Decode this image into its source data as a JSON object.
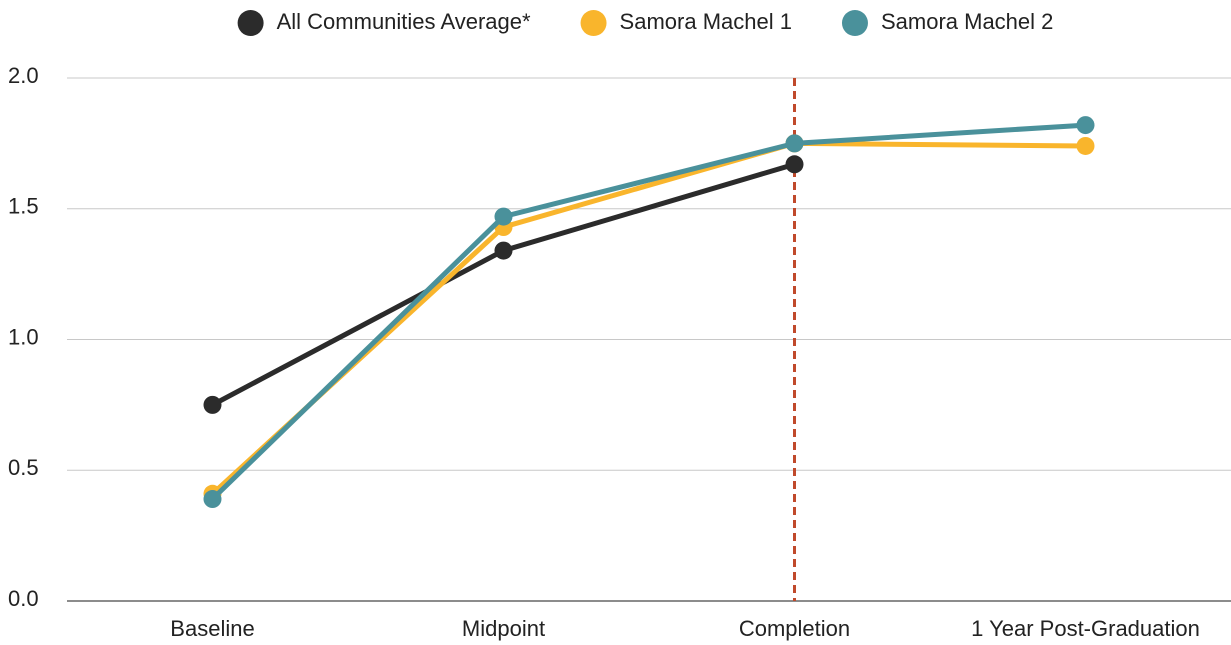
{
  "chart_data": {
    "type": "line",
    "categories": [
      "Baseline",
      "Midpoint",
      "Completion",
      "1 Year Post-Graduation"
    ],
    "series": [
      {
        "name": "All Communities Average*",
        "color": "#2b2b2b",
        "values": [
          0.75,
          1.34,
          1.67,
          null
        ]
      },
      {
        "name": "Samora Machel 1",
        "color": "#f9b52c",
        "values": [
          0.41,
          1.43,
          1.75,
          1.74
        ]
      },
      {
        "name": "Samora Machel 2",
        "color": "#4a919b",
        "values": [
          0.39,
          1.47,
          1.75,
          1.82
        ]
      }
    ],
    "ylim": [
      0,
      2
    ],
    "yticks": [
      {
        "value": 0,
        "label": "0.0"
      },
      0.5,
      {
        "value": 1,
        "label": "1.0"
      },
      1.5,
      {
        "value": 2,
        "label": "2.0"
      }
    ],
    "grid": true,
    "legend": "top"
  }
}
